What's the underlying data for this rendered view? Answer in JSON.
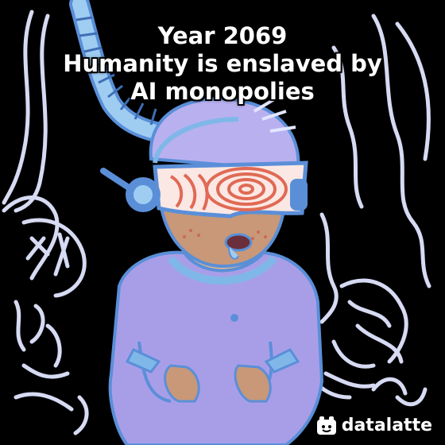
{
  "caption": {
    "line1": "Year 2069",
    "line2": "Humanity is enslaved by",
    "line3": "AI monopolies"
  },
  "brand": {
    "name": "datalatte",
    "icon": "datalatte-logo-icon"
  },
  "colors": {
    "background": "#000000",
    "figure_purple": "#a89ee8",
    "outline_blue": "#5a8fd8",
    "skin": "#c89878",
    "visor_red": "#e06a55",
    "scribble_white": "#e8eaff"
  }
}
